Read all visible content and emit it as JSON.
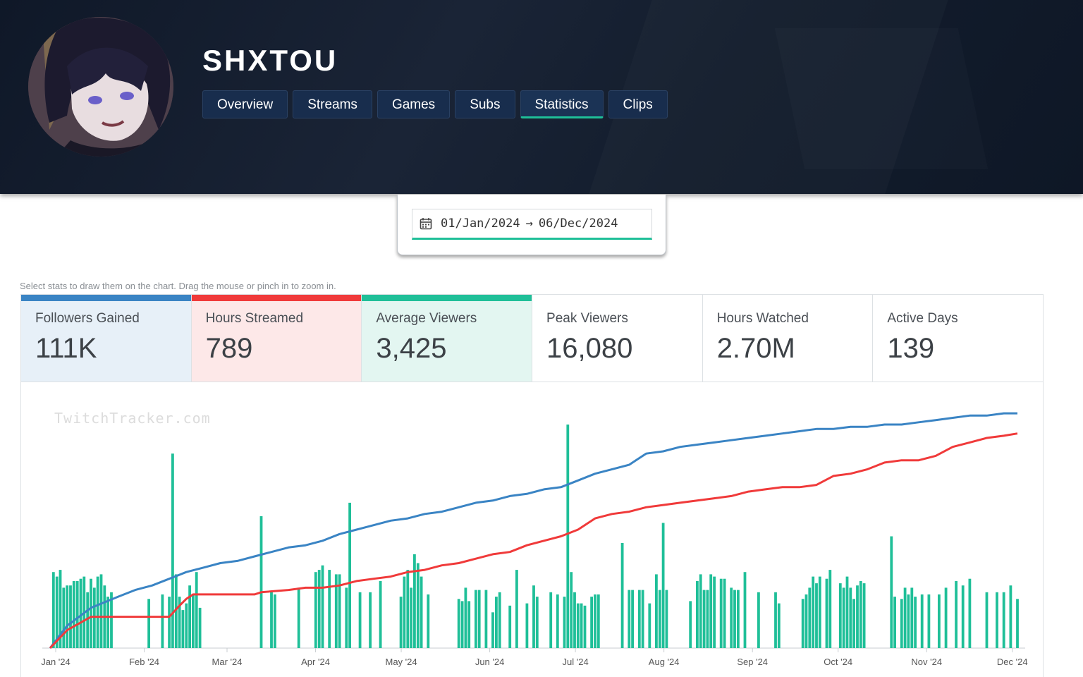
{
  "channel": {
    "name": "SHXTOU"
  },
  "tabs": [
    {
      "label": "Overview"
    },
    {
      "label": "Streams"
    },
    {
      "label": "Games"
    },
    {
      "label": "Subs"
    },
    {
      "label": "Statistics",
      "active": true
    },
    {
      "label": "Clips"
    }
  ],
  "date_range": {
    "start": "01/Jan/2024",
    "arrow": "→",
    "end": "06/Dec/2024",
    "icon": "calendar-icon"
  },
  "hint": "Select stats to draw them on the chart. Drag the mouse or pinch in to zoom in.",
  "stats": [
    {
      "label": "Followers Gained",
      "value": "111K",
      "color": "#3a84c4",
      "selected": true
    },
    {
      "label": "Hours Streamed",
      "value": "789",
      "color": "#f03a3a",
      "selected": true
    },
    {
      "label": "Average Viewers",
      "value": "3,425",
      "color": "#1fbf98",
      "selected": true
    },
    {
      "label": "Peak Viewers",
      "value": "16,080",
      "selected": false
    },
    {
      "label": "Hours Watched",
      "value": "2.70M",
      "selected": false
    },
    {
      "label": "Active Days",
      "value": "139",
      "selected": false
    }
  ],
  "chart_data": {
    "type": "bar",
    "watermark": "TwitchTracker.com",
    "x_tick_labels": [
      "Jan '24",
      "Feb '24",
      "Mar '24",
      "Apr '24",
      "May '24",
      "Jun '24",
      "Jul '24",
      "Aug '24",
      "Sep '24",
      "Oct '24",
      "Nov '24",
      "Dec '24"
    ],
    "grid": false,
    "y_axis": "hidden",
    "series": [
      {
        "name": "Average Viewers",
        "kind": "bar",
        "color": "#1fbf98",
        "points": [
          [
            1,
            34
          ],
          [
            2,
            32
          ],
          [
            3,
            35
          ],
          [
            4,
            27
          ],
          [
            5,
            28
          ],
          [
            6,
            28
          ],
          [
            7,
            30
          ],
          [
            8,
            30
          ],
          [
            9,
            31
          ],
          [
            10,
            32
          ],
          [
            11,
            25
          ],
          [
            12,
            31
          ],
          [
            13,
            27
          ],
          [
            14,
            32
          ],
          [
            15,
            33
          ],
          [
            16,
            28
          ],
          [
            17,
            23
          ],
          [
            18,
            25
          ],
          [
            29,
            22
          ],
          [
            33,
            24
          ],
          [
            35,
            23
          ],
          [
            36,
            87
          ],
          [
            37,
            33
          ],
          [
            38,
            23
          ],
          [
            39,
            17
          ],
          [
            40,
            20
          ],
          [
            41,
            28
          ],
          [
            42,
            24
          ],
          [
            43,
            34
          ],
          [
            44,
            18
          ],
          [
            62,
            59
          ],
          [
            65,
            25
          ],
          [
            66,
            24
          ],
          [
            73,
            27
          ],
          [
            78,
            34
          ],
          [
            79,
            35
          ],
          [
            80,
            37
          ],
          [
            82,
            35
          ],
          [
            84,
            33
          ],
          [
            85,
            33
          ],
          [
            87,
            27
          ],
          [
            88,
            65
          ],
          [
            91,
            25
          ],
          [
            94,
            25
          ],
          [
            97,
            30
          ],
          [
            103,
            23
          ],
          [
            104,
            32
          ],
          [
            105,
            35
          ],
          [
            106,
            27
          ],
          [
            107,
            42
          ],
          [
            108,
            38
          ],
          [
            109,
            32
          ],
          [
            111,
            24
          ],
          [
            120,
            22
          ],
          [
            121,
            21
          ],
          [
            122,
            27
          ],
          [
            123,
            21
          ],
          [
            125,
            26
          ],
          [
            126,
            26
          ],
          [
            128,
            26
          ],
          [
            130,
            16
          ],
          [
            131,
            23
          ],
          [
            132,
            25
          ],
          [
            135,
            19
          ],
          [
            137,
            35
          ],
          [
            140,
            20
          ],
          [
            142,
            28
          ],
          [
            143,
            23
          ],
          [
            147,
            25
          ],
          [
            149,
            24
          ],
          [
            151,
            23
          ],
          [
            152,
            100
          ],
          [
            153,
            34
          ],
          [
            154,
            25
          ],
          [
            155,
            20
          ],
          [
            156,
            20
          ],
          [
            157,
            19
          ],
          [
            159,
            23
          ],
          [
            160,
            24
          ],
          [
            161,
            24
          ],
          [
            168,
            47
          ],
          [
            170,
            26
          ],
          [
            171,
            26
          ],
          [
            173,
            26
          ],
          [
            174,
            26
          ],
          [
            176,
            20
          ],
          [
            178,
            33
          ],
          [
            179,
            26
          ],
          [
            180,
            56
          ],
          [
            181,
            26
          ],
          [
            188,
            21
          ],
          [
            190,
            30
          ],
          [
            191,
            33
          ],
          [
            192,
            26
          ],
          [
            193,
            26
          ],
          [
            194,
            33
          ],
          [
            195,
            32
          ],
          [
            197,
            31
          ],
          [
            198,
            31
          ],
          [
            200,
            27
          ],
          [
            201,
            26
          ],
          [
            202,
            26
          ],
          [
            204,
            34
          ],
          [
            208,
            25
          ],
          [
            213,
            25
          ],
          [
            214,
            20
          ],
          [
            221,
            22
          ],
          [
            222,
            24
          ],
          [
            223,
            27
          ],
          [
            224,
            32
          ],
          [
            225,
            29
          ],
          [
            226,
            32
          ],
          [
            228,
            31
          ],
          [
            229,
            35
          ],
          [
            232,
            29
          ],
          [
            233,
            27
          ],
          [
            234,
            32
          ],
          [
            235,
            27
          ],
          [
            236,
            22
          ],
          [
            237,
            28
          ],
          [
            238,
            30
          ],
          [
            239,
            29
          ],
          [
            247,
            50
          ],
          [
            248,
            23
          ],
          [
            250,
            22
          ],
          [
            251,
            27
          ],
          [
            252,
            24
          ],
          [
            253,
            27
          ],
          [
            254,
            23
          ],
          [
            256,
            24
          ],
          [
            258,
            24
          ],
          [
            261,
            24
          ],
          [
            263,
            27
          ],
          [
            266,
            30
          ],
          [
            268,
            28
          ],
          [
            270,
            31
          ],
          [
            275,
            25
          ],
          [
            278,
            25
          ],
          [
            280,
            25
          ],
          [
            282,
            28
          ],
          [
            284,
            22
          ]
        ]
      },
      {
        "name": "Followers Gained",
        "kind": "line",
        "color": "#3a84c4",
        "points": [
          [
            0,
            0
          ],
          [
            5,
            10
          ],
          [
            12,
            18
          ],
          [
            20,
            23
          ],
          [
            25,
            26
          ],
          [
            30,
            28
          ],
          [
            35,
            31
          ],
          [
            40,
            34
          ],
          [
            45,
            36
          ],
          [
            50,
            38
          ],
          [
            55,
            39
          ],
          [
            60,
            41
          ],
          [
            65,
            43
          ],
          [
            70,
            45
          ],
          [
            75,
            46
          ],
          [
            80,
            48
          ],
          [
            85,
            51
          ],
          [
            90,
            53
          ],
          [
            95,
            55
          ],
          [
            100,
            57
          ],
          [
            105,
            58
          ],
          [
            110,
            60
          ],
          [
            115,
            61
          ],
          [
            120,
            63
          ],
          [
            125,
            65
          ],
          [
            130,
            66
          ],
          [
            135,
            68
          ],
          [
            140,
            69
          ],
          [
            145,
            71
          ],
          [
            150,
            72
          ],
          [
            155,
            75
          ],
          [
            160,
            78
          ],
          [
            165,
            80
          ],
          [
            170,
            82
          ],
          [
            172,
            84
          ],
          [
            175,
            87
          ],
          [
            180,
            88
          ],
          [
            185,
            90
          ],
          [
            190,
            91
          ],
          [
            195,
            92
          ],
          [
            200,
            93
          ],
          [
            205,
            94
          ],
          [
            210,
            95
          ],
          [
            215,
            96
          ],
          [
            220,
            97
          ],
          [
            225,
            98
          ],
          [
            230,
            98
          ],
          [
            235,
            99
          ],
          [
            240,
            99
          ],
          [
            245,
            100
          ],
          [
            250,
            100
          ],
          [
            255,
            101
          ],
          [
            260,
            102
          ],
          [
            265,
            103
          ],
          [
            270,
            104
          ],
          [
            275,
            104
          ],
          [
            280,
            105
          ],
          [
            284,
            105
          ]
        ]
      },
      {
        "name": "Hours Streamed",
        "kind": "line",
        "color": "#f03a3a",
        "points": [
          [
            0,
            0
          ],
          [
            5,
            8
          ],
          [
            12,
            14
          ],
          [
            20,
            14
          ],
          [
            30,
            14
          ],
          [
            35,
            14
          ],
          [
            38,
            19
          ],
          [
            40,
            22
          ],
          [
            42,
            24
          ],
          [
            45,
            24
          ],
          [
            55,
            24
          ],
          [
            60,
            24
          ],
          [
            62,
            25
          ],
          [
            70,
            26
          ],
          [
            75,
            27
          ],
          [
            80,
            27
          ],
          [
            85,
            28
          ],
          [
            90,
            30
          ],
          [
            95,
            31
          ],
          [
            100,
            32
          ],
          [
            105,
            34
          ],
          [
            110,
            35
          ],
          [
            115,
            37
          ],
          [
            120,
            38
          ],
          [
            125,
            40
          ],
          [
            130,
            42
          ],
          [
            135,
            43
          ],
          [
            140,
            46
          ],
          [
            145,
            48
          ],
          [
            150,
            50
          ],
          [
            155,
            53
          ],
          [
            160,
            58
          ],
          [
            165,
            60
          ],
          [
            170,
            61
          ],
          [
            175,
            63
          ],
          [
            180,
            64
          ],
          [
            185,
            65
          ],
          [
            190,
            66
          ],
          [
            195,
            67
          ],
          [
            200,
            68
          ],
          [
            205,
            70
          ],
          [
            210,
            71
          ],
          [
            215,
            72
          ],
          [
            220,
            72
          ],
          [
            225,
            73
          ],
          [
            230,
            77
          ],
          [
            235,
            78
          ],
          [
            240,
            80
          ],
          [
            245,
            83
          ],
          [
            250,
            84
          ],
          [
            255,
            84
          ],
          [
            260,
            86
          ],
          [
            265,
            90
          ],
          [
            270,
            92
          ],
          [
            275,
            94
          ],
          [
            280,
            95
          ],
          [
            284,
            96
          ]
        ]
      }
    ]
  }
}
